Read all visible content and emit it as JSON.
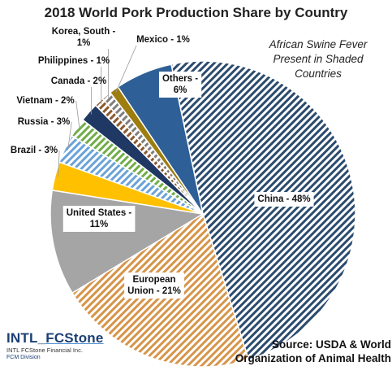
{
  "chart_data": {
    "type": "pie",
    "title": "2018 World Pork Production Share by Country",
    "annotation": "African Swine Fever\nPresent in Shaded\nCountries",
    "source": "Source: USDA & World\nOrganization of Animal Health",
    "slices": [
      {
        "name": "China",
        "label": "China - 48%",
        "value": 48,
        "color": "#2b4b6e",
        "shaded": true
      },
      {
        "name": "European Union",
        "label": "European\nUnion - 21%",
        "value": 21,
        "color": "#d6954a",
        "shaded": true
      },
      {
        "name": "United States",
        "label": "United States -\n11%",
        "value": 11,
        "color": "#a5a5a5",
        "shaded": false
      },
      {
        "name": "Brazil",
        "label": "Brazil - 3%",
        "value": 3,
        "color": "#ffc000",
        "shaded": false
      },
      {
        "name": "Russia",
        "label": "Russia - 3%",
        "value": 3,
        "color": "#6aa3d8",
        "shaded": true
      },
      {
        "name": "Vietnam",
        "label": "Vietnam - 2%",
        "value": 2,
        "color": "#70ad47",
        "shaded": true
      },
      {
        "name": "Canada",
        "label": "Canada - 2%",
        "value": 2,
        "color": "#1f3864",
        "shaded": false
      },
      {
        "name": "Philippines",
        "label": "Philippines - 1%",
        "value": 1,
        "color": "#8c5a2e",
        "shaded": true
      },
      {
        "name": "Korea, South",
        "label": "Korea, South -\n1%",
        "value": 1,
        "color": "#7f7f7f",
        "shaded": true
      },
      {
        "name": "Mexico",
        "label": "Mexico - 1%",
        "value": 1,
        "color": "#9e7d0f",
        "shaded": false
      },
      {
        "name": "Others",
        "label": "Others -\n6%",
        "value": 6,
        "color": "#2e5f96",
        "shaded": false
      }
    ]
  },
  "logo": {
    "name_a": "INTL",
    "name_b": "FCStone",
    "tagline": "INTL FCStone Financial Inc.",
    "division": "FCM Division"
  }
}
